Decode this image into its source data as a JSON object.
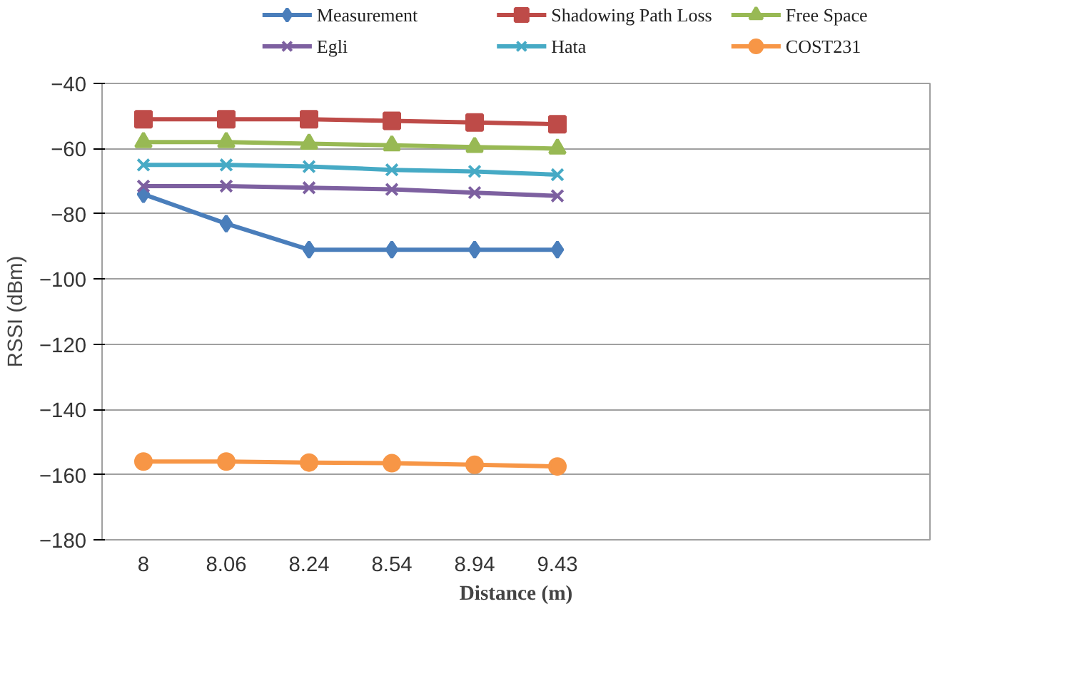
{
  "chart_data": {
    "type": "line",
    "xlabel": "Distance (m)",
    "ylabel": "RSSI (dBm)",
    "categories": [
      "8",
      "8.06",
      "8.24",
      "8.54",
      "8.94",
      "9.43",
      null,
      null,
      null,
      null
    ],
    "ylim": [
      -180,
      -40
    ],
    "yticks": [
      -180,
      -160,
      -140,
      -120,
      -100,
      -80,
      -60,
      -40
    ],
    "grid": "y",
    "legend": "top",
    "series": [
      {
        "name": "Measurement",
        "color": "#4a7ebb",
        "marker": "diamond",
        "values": [
          -74,
          -83,
          -91,
          -91,
          -91,
          -91,
          null,
          null,
          null,
          null
        ]
      },
      {
        "name": "Shadowing Path Loss",
        "color": "#be4b48",
        "marker": "square",
        "values": [
          -51,
          -51,
          -51,
          -51.5,
          -52,
          -52.5,
          null,
          null,
          null,
          null
        ]
      },
      {
        "name": "Free Space",
        "color": "#98b954",
        "marker": "triangle",
        "values": [
          -58,
          -58,
          -58.5,
          -59,
          -59.5,
          -60,
          null,
          null,
          null,
          null
        ]
      },
      {
        "name": "Egli",
        "color": "#7d60a0",
        "marker": "cross",
        "values": [
          -71.5,
          -71.5,
          -72,
          -72.5,
          -73.5,
          -74.5,
          null,
          null,
          null,
          null
        ]
      },
      {
        "name": "Hata",
        "color": "#46aac5",
        "marker": "cross",
        "values": [
          -65,
          -65,
          -65.5,
          -66.5,
          -67,
          -68,
          null,
          null,
          null,
          null
        ]
      },
      {
        "name": "COST231",
        "color": "#f79646",
        "marker": "circle",
        "values": [
          -156,
          -156,
          -156.3,
          -156.5,
          -157,
          -157.5,
          null,
          null,
          null,
          null
        ]
      }
    ]
  }
}
